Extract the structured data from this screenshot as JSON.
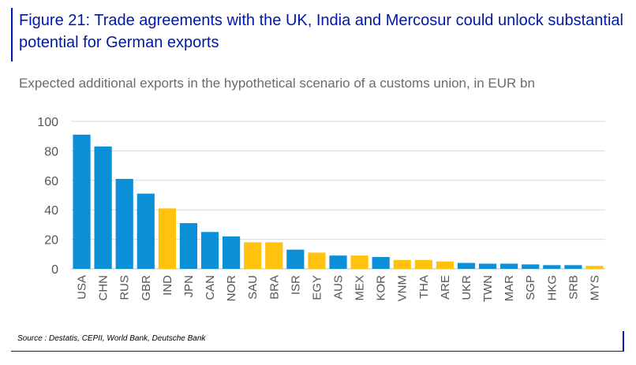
{
  "header": {
    "title": "Figure 21: Trade agreements with the UK, India and Mercosur could unlock substantial potential for German exports",
    "subtitle": "Expected additional exports in the hypothetical scenario of a customs union, in EUR bn"
  },
  "footer": {
    "source": "Source : Destatis, CEPII, World Bank, Deutsche Bank"
  },
  "colors": {
    "primary_bar": "#0b8fd6",
    "highlight_bar": "#ffc20e",
    "title": "#0018a8",
    "gridline": "#d9d9d9"
  },
  "chart_data": {
    "type": "bar",
    "categories": [
      "USA",
      "CHN",
      "RUS",
      "GBR",
      "IND",
      "JPN",
      "CAN",
      "NOR",
      "SAU",
      "BRA",
      "ISR",
      "EGY",
      "AUS",
      "MEX",
      "KOR",
      "VNM",
      "THA",
      "ARE",
      "UKR",
      "TWN",
      "MAR",
      "SGP",
      "HKG",
      "SRB",
      "MYS"
    ],
    "values": [
      91,
      83,
      61,
      51,
      41,
      31,
      25,
      22,
      18,
      18,
      13,
      11,
      9,
      9,
      8,
      6,
      6,
      5,
      4,
      3.5,
      3.5,
      3,
      2.5,
      2.5,
      2
    ],
    "highlighted": [
      "IND",
      "SAU",
      "BRA",
      "EGY",
      "MEX",
      "VNM",
      "THA",
      "ARE",
      "MYS"
    ],
    "yticks": [
      0,
      20,
      40,
      60,
      80,
      100
    ],
    "ylim": [
      0,
      100
    ],
    "grid": true,
    "legend": "none"
  }
}
